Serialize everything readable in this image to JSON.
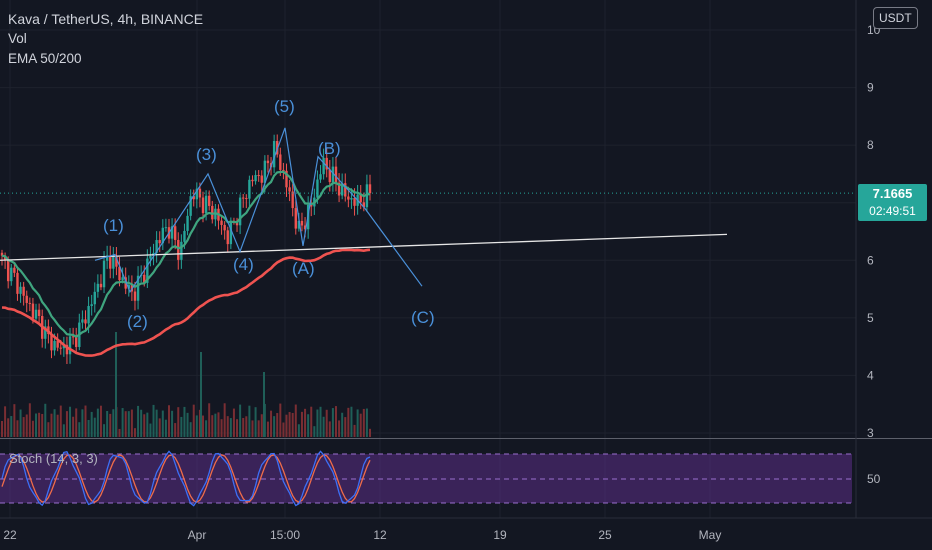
{
  "header": {
    "symbol_line": "Kava / TetherUS, 4h, BINANCE",
    "vol_label": "Vol",
    "ema_label": "EMA 50/200"
  },
  "currency_button": "USDT",
  "price_tag": {
    "price": "7.1665",
    "countdown": "02:49:51"
  },
  "stoch_label": "Stoch (14, 3, 3)",
  "colors": {
    "background": "#131722",
    "up": "#26a69a",
    "down": "#ef5350",
    "wave": "#4a90d9",
    "ema50": "#3fa57f",
    "ema200": "#ef5350",
    "stoch_band": "#5b2d86"
  },
  "chart_data": {
    "type": "candlestick",
    "symbol": "Kava / TetherUS",
    "timeframe": "4h",
    "exchange": "BINANCE",
    "price_axis": {
      "ticks": [
        3,
        4,
        5,
        6,
        7,
        8,
        9,
        10
      ],
      "range": [
        2.95,
        10.1
      ]
    },
    "time_axis": {
      "labels": [
        "22",
        "Apr",
        "15:00",
        "12",
        "19",
        "25",
        "May"
      ]
    },
    "close_trend": [
      [
        "22",
        6.0
      ],
      [
        "22",
        5.7
      ],
      [
        "",
        5.3
      ],
      [
        "",
        5.0
      ],
      [
        "",
        4.6
      ],
      [
        "",
        4.45
      ],
      [
        "",
        4.6
      ],
      [
        "",
        5.0
      ],
      [
        "",
        5.5
      ],
      [
        "",
        6.1
      ],
      [
        "",
        5.7
      ],
      [
        "",
        5.4
      ],
      [
        "",
        5.8
      ],
      [
        "",
        6.3
      ],
      [
        "Apr",
        6.6
      ],
      [
        "",
        6.1
      ],
      [
        "",
        7.2
      ],
      [
        "",
        7.0
      ],
      [
        "",
        6.8
      ],
      [
        "",
        6.4
      ],
      [
        "",
        6.9
      ],
      [
        "",
        7.4
      ],
      [
        "",
        7.5
      ],
      [
        "15:00",
        7.95
      ],
      [
        "",
        7.3
      ],
      [
        "",
        6.5
      ],
      [
        "",
        6.9
      ],
      [
        "",
        7.7
      ],
      [
        "",
        7.4
      ],
      [
        "",
        7.1
      ],
      [
        "",
        7.0
      ],
      [
        "12",
        7.17
      ]
    ],
    "overlays": {
      "ema50_end": 6.95,
      "ema200_end": 6.0,
      "trendline": {
        "from": 6.0,
        "to": 6.45
      },
      "wave_labels": [
        "(1)",
        "(2)",
        "(3)",
        "(4)",
        "(5)",
        "(A)",
        "(B)",
        "(C)"
      ]
    },
    "stochastic": {
      "params": "14, 3, 3",
      "level_label": 50,
      "upper_band": 80,
      "lower_band": 20
    },
    "last_price": 7.1665
  }
}
